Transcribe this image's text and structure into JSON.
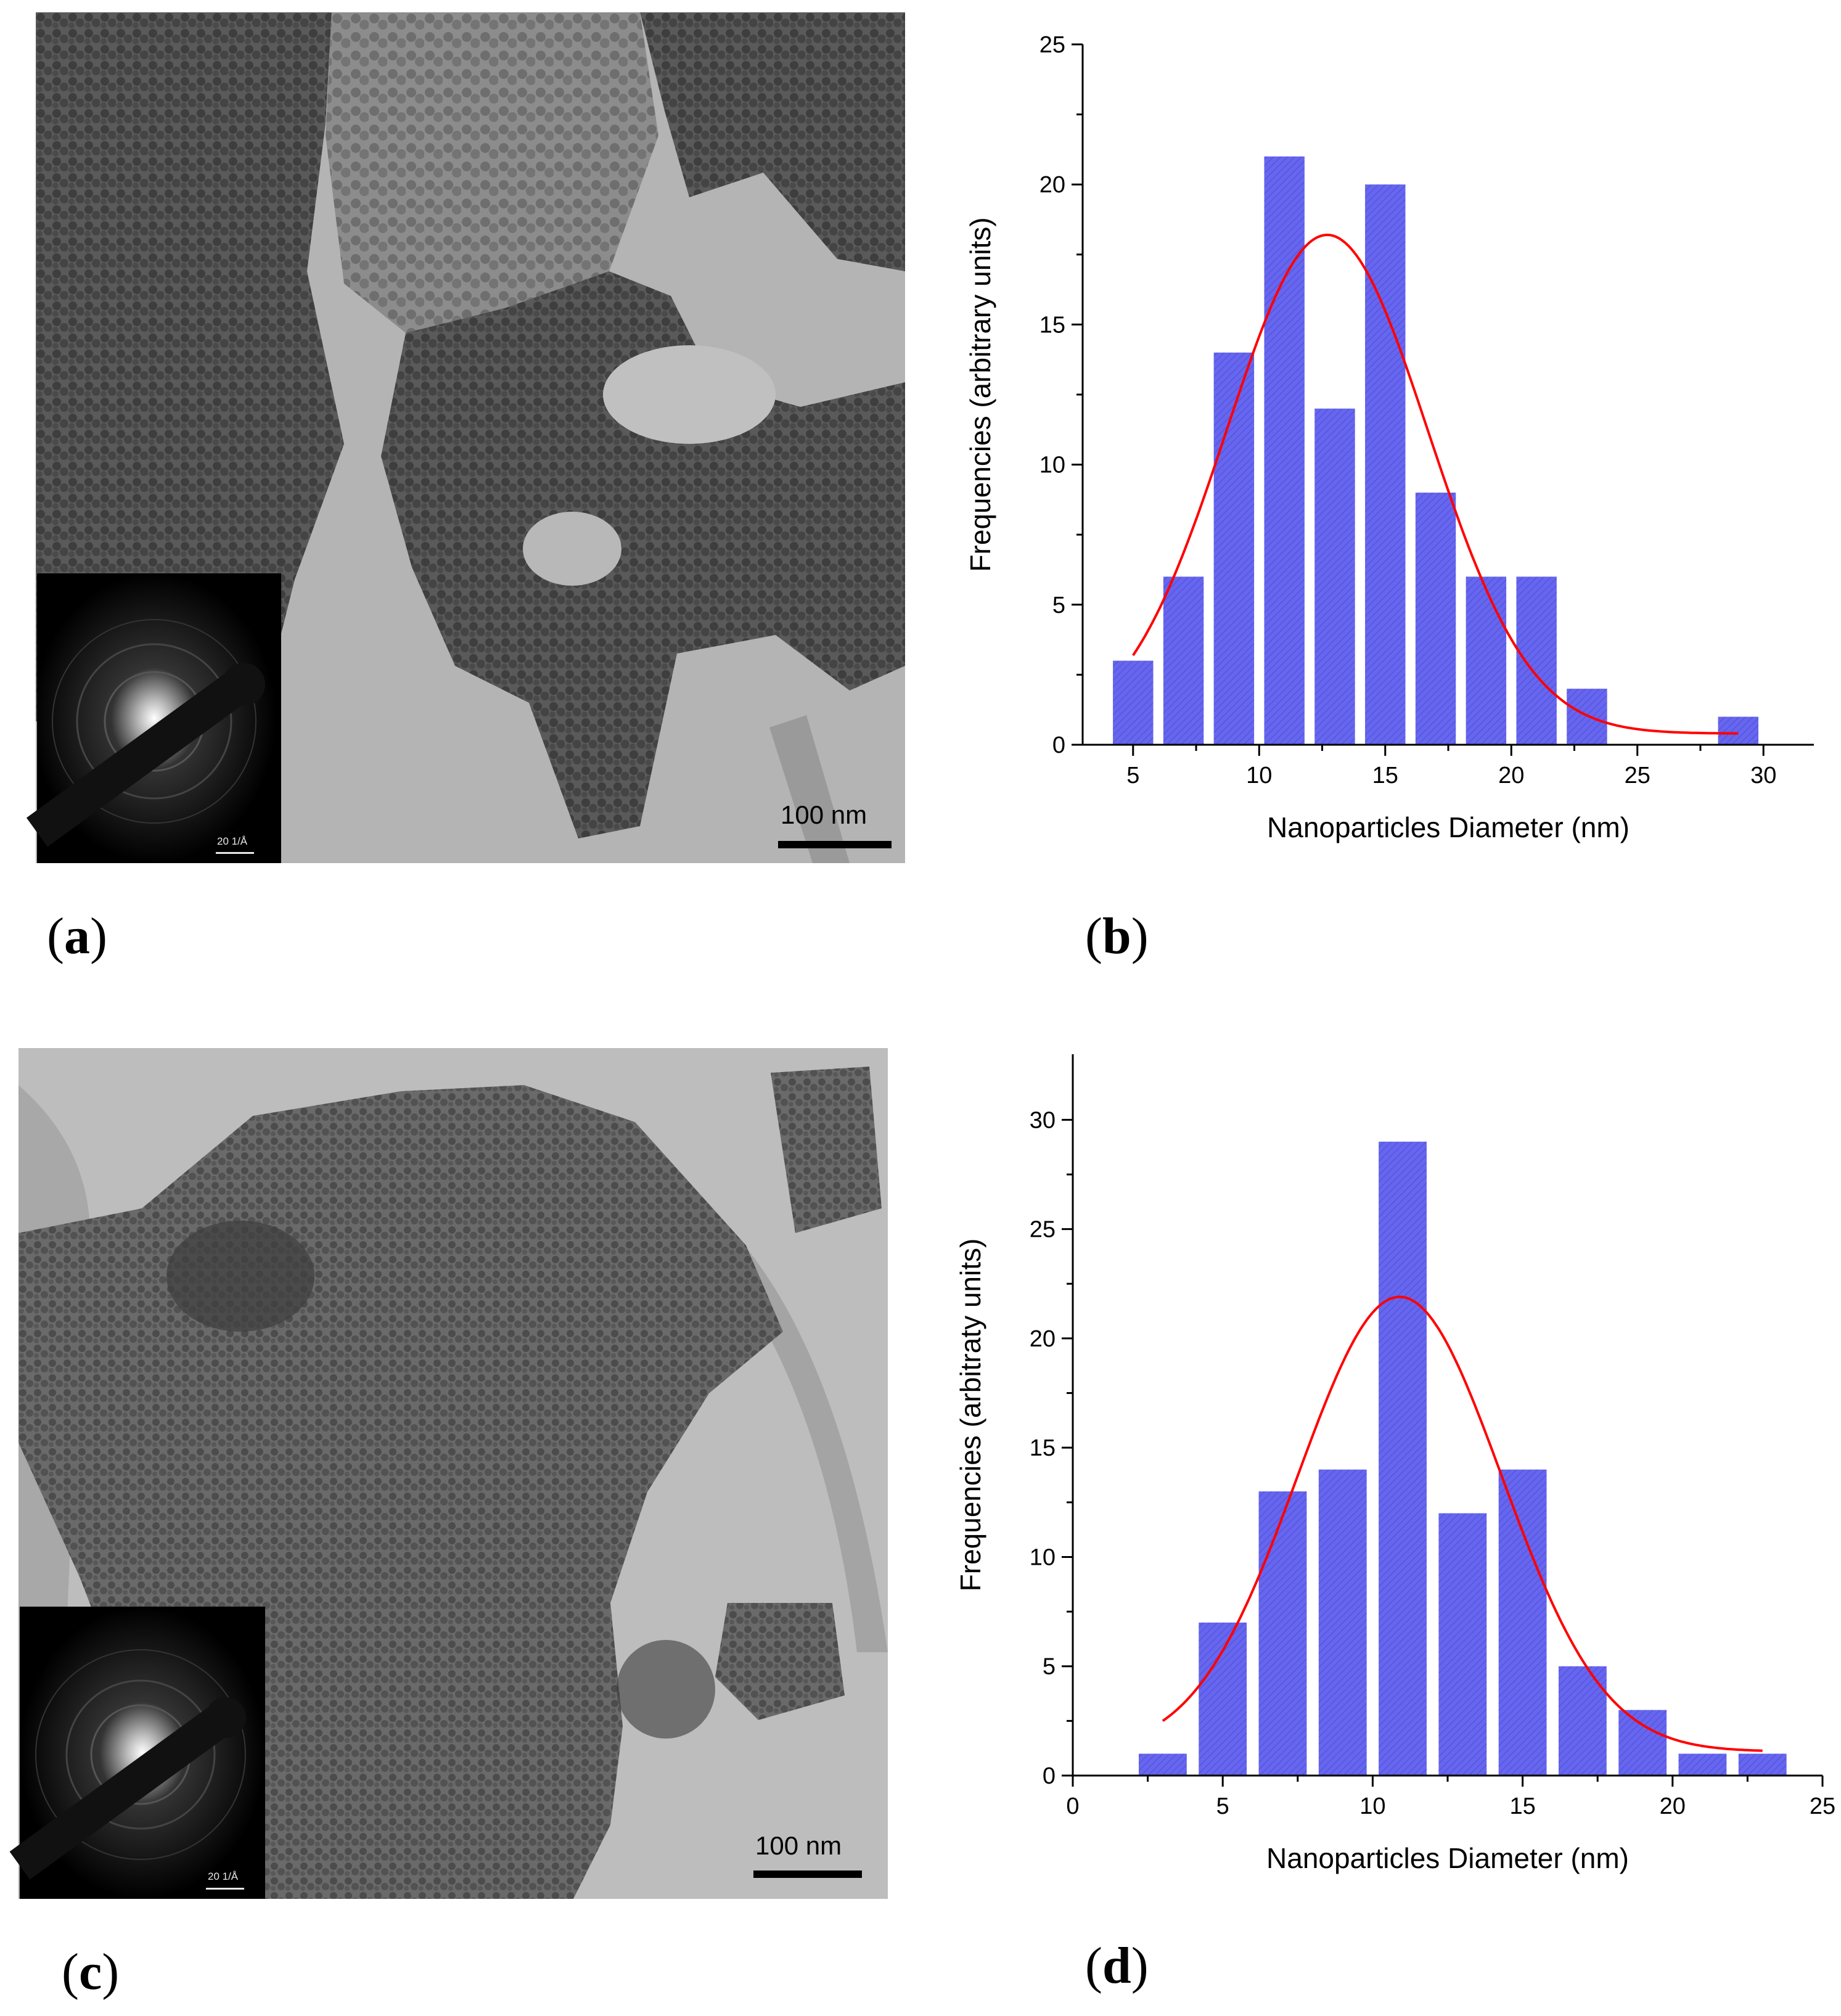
{
  "panels": {
    "a": {
      "label": "a",
      "scale_bar": "100 nm",
      "inset_scale": "20 1/Å"
    },
    "b": {
      "label": "b"
    },
    "c": {
      "label": "c",
      "scale_bar": "100 nm",
      "inset_scale": "20 1/Å"
    },
    "d": {
      "label": "d"
    }
  },
  "colors": {
    "bar_fill": "#6666ee",
    "bar_stroke": "#3333cc",
    "fit_line": "#ff0000",
    "axis": "#000000"
  },
  "chart_data": [
    {
      "type": "bar",
      "panel": "b",
      "xlabel": "Nanoparticles Diameter (nm)",
      "ylabel": "Frequencies (arbitrary units)",
      "xlim": [
        3,
        32
      ],
      "ylim": [
        0,
        25
      ],
      "xticks": [
        5,
        10,
        15,
        20,
        25,
        30
      ],
      "yticks": [
        0,
        5,
        10,
        15,
        20,
        25
      ],
      "bar_width": 1.6,
      "x": [
        5,
        7,
        9,
        11,
        13,
        15,
        17,
        19,
        21,
        23,
        29
      ],
      "values": [
        3,
        6,
        14,
        21,
        12,
        20,
        9,
        6,
        6,
        2,
        1
      ],
      "fit": {
        "type": "gaussian",
        "amplitude": 17.8,
        "center": 12.7,
        "sigma": 4.0,
        "offset": 0.4,
        "x_range": [
          5,
          29
        ]
      }
    },
    {
      "type": "bar",
      "panel": "d",
      "xlabel": "Nanoparticles Diameter (nm)",
      "ylabel": "Frequencies (arbitraty units)",
      "xlim": [
        0,
        25
      ],
      "ylim": [
        0,
        33
      ],
      "xticks": [
        0,
        5,
        10,
        15,
        20,
        25
      ],
      "yticks": [
        0,
        5,
        10,
        15,
        20,
        25,
        30
      ],
      "bar_width": 1.6,
      "x": [
        3,
        5,
        7,
        9,
        11,
        13,
        15,
        17,
        19,
        21,
        23
      ],
      "values": [
        1,
        7,
        13,
        14,
        29,
        12,
        14,
        5,
        3,
        1,
        1
      ],
      "fit": {
        "type": "gaussian",
        "amplitude": 20.8,
        "center": 10.9,
        "sigma": 3.4,
        "offset": 1.1,
        "x_range": [
          3,
          23
        ]
      }
    }
  ]
}
